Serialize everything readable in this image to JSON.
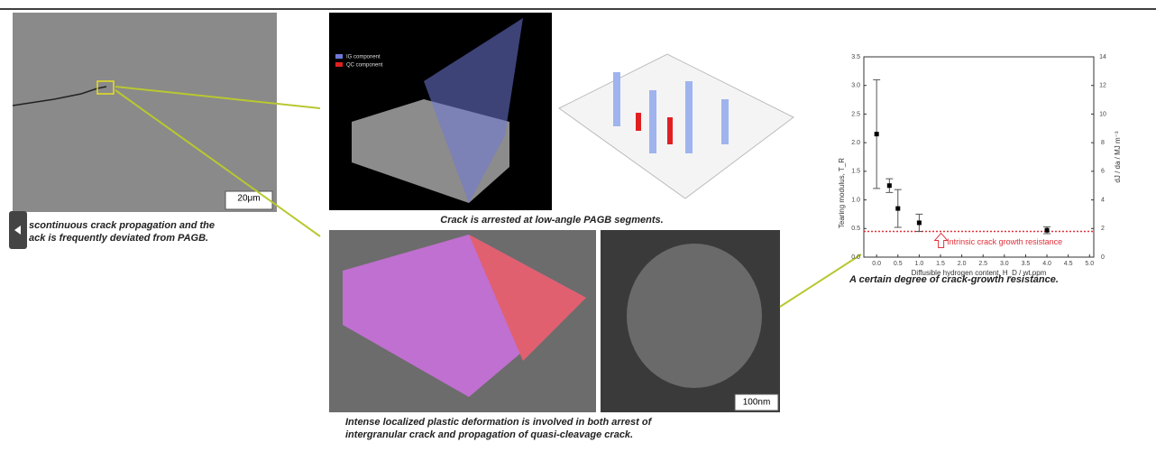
{
  "panels": {
    "sem": {
      "scale_bar": "20μm",
      "caption": [
        "scontinuous crack propagation and the",
        "ack is frequently deviated from PAGB."
      ]
    },
    "tomography": {
      "legend": [
        "IG component",
        "QC component"
      ],
      "caption": "Crack is arrested at low-angle PAGB segments."
    },
    "ebsd": {
      "caption": [
        "Intense localized plastic deformation is involved in both arrest of",
        "intergranular crack and propagation of quasi-cleavage crack."
      ]
    },
    "tem": {
      "scale_bar": "100nm"
    }
  },
  "chart_data": {
    "type": "scatter",
    "xlabel": "Diffusible hydrogen content,  H_D / wt.ppm",
    "ylabel": "Tearing modulus,  T_R",
    "y2label": "dJ / da / MJ m⁻³",
    "caption": "A certain degree of crack-growth resistance.",
    "x": [
      0.0,
      0.3,
      0.5,
      1.0,
      4.0
    ],
    "series": [
      {
        "color": "#000000",
        "values": [
          2.15,
          1.25,
          0.85,
          0.6,
          0.47
        ],
        "errors": [
          0.95,
          0.12,
          0.33,
          0.15,
          0.06
        ]
      }
    ],
    "reference_line": {
      "value": 0.45,
      "color": "#e0303a",
      "label": "Intrinsic crack growth resistance"
    },
    "xlim": [
      -0.3,
      5.1
    ],
    "ylim": [
      0,
      3.5
    ],
    "y2lim": [
      0,
      14
    ],
    "xticks": [
      {
        "value": 0,
        "label": "0.0"
      },
      0.5,
      {
        "value": 1,
        "label": "1.0"
      },
      1.5,
      {
        "value": 2,
        "label": "2.0"
      },
      2.5,
      {
        "value": 3,
        "label": "3.0"
      },
      3.5,
      {
        "value": 4,
        "label": "4.0"
      },
      4.5,
      {
        "value": 5,
        "label": "5.0"
      }
    ],
    "yticks": [
      {
        "value": 0,
        "label": "0.0"
      },
      0.5,
      {
        "value": 1,
        "label": "1.0"
      },
      1.5,
      {
        "value": 2,
        "label": "2.0"
      },
      2.5,
      {
        "value": 3,
        "label": "3.0"
      },
      3.5
    ],
    "y2ticks": [
      0,
      2,
      4,
      6,
      8,
      10,
      12,
      14
    ]
  }
}
